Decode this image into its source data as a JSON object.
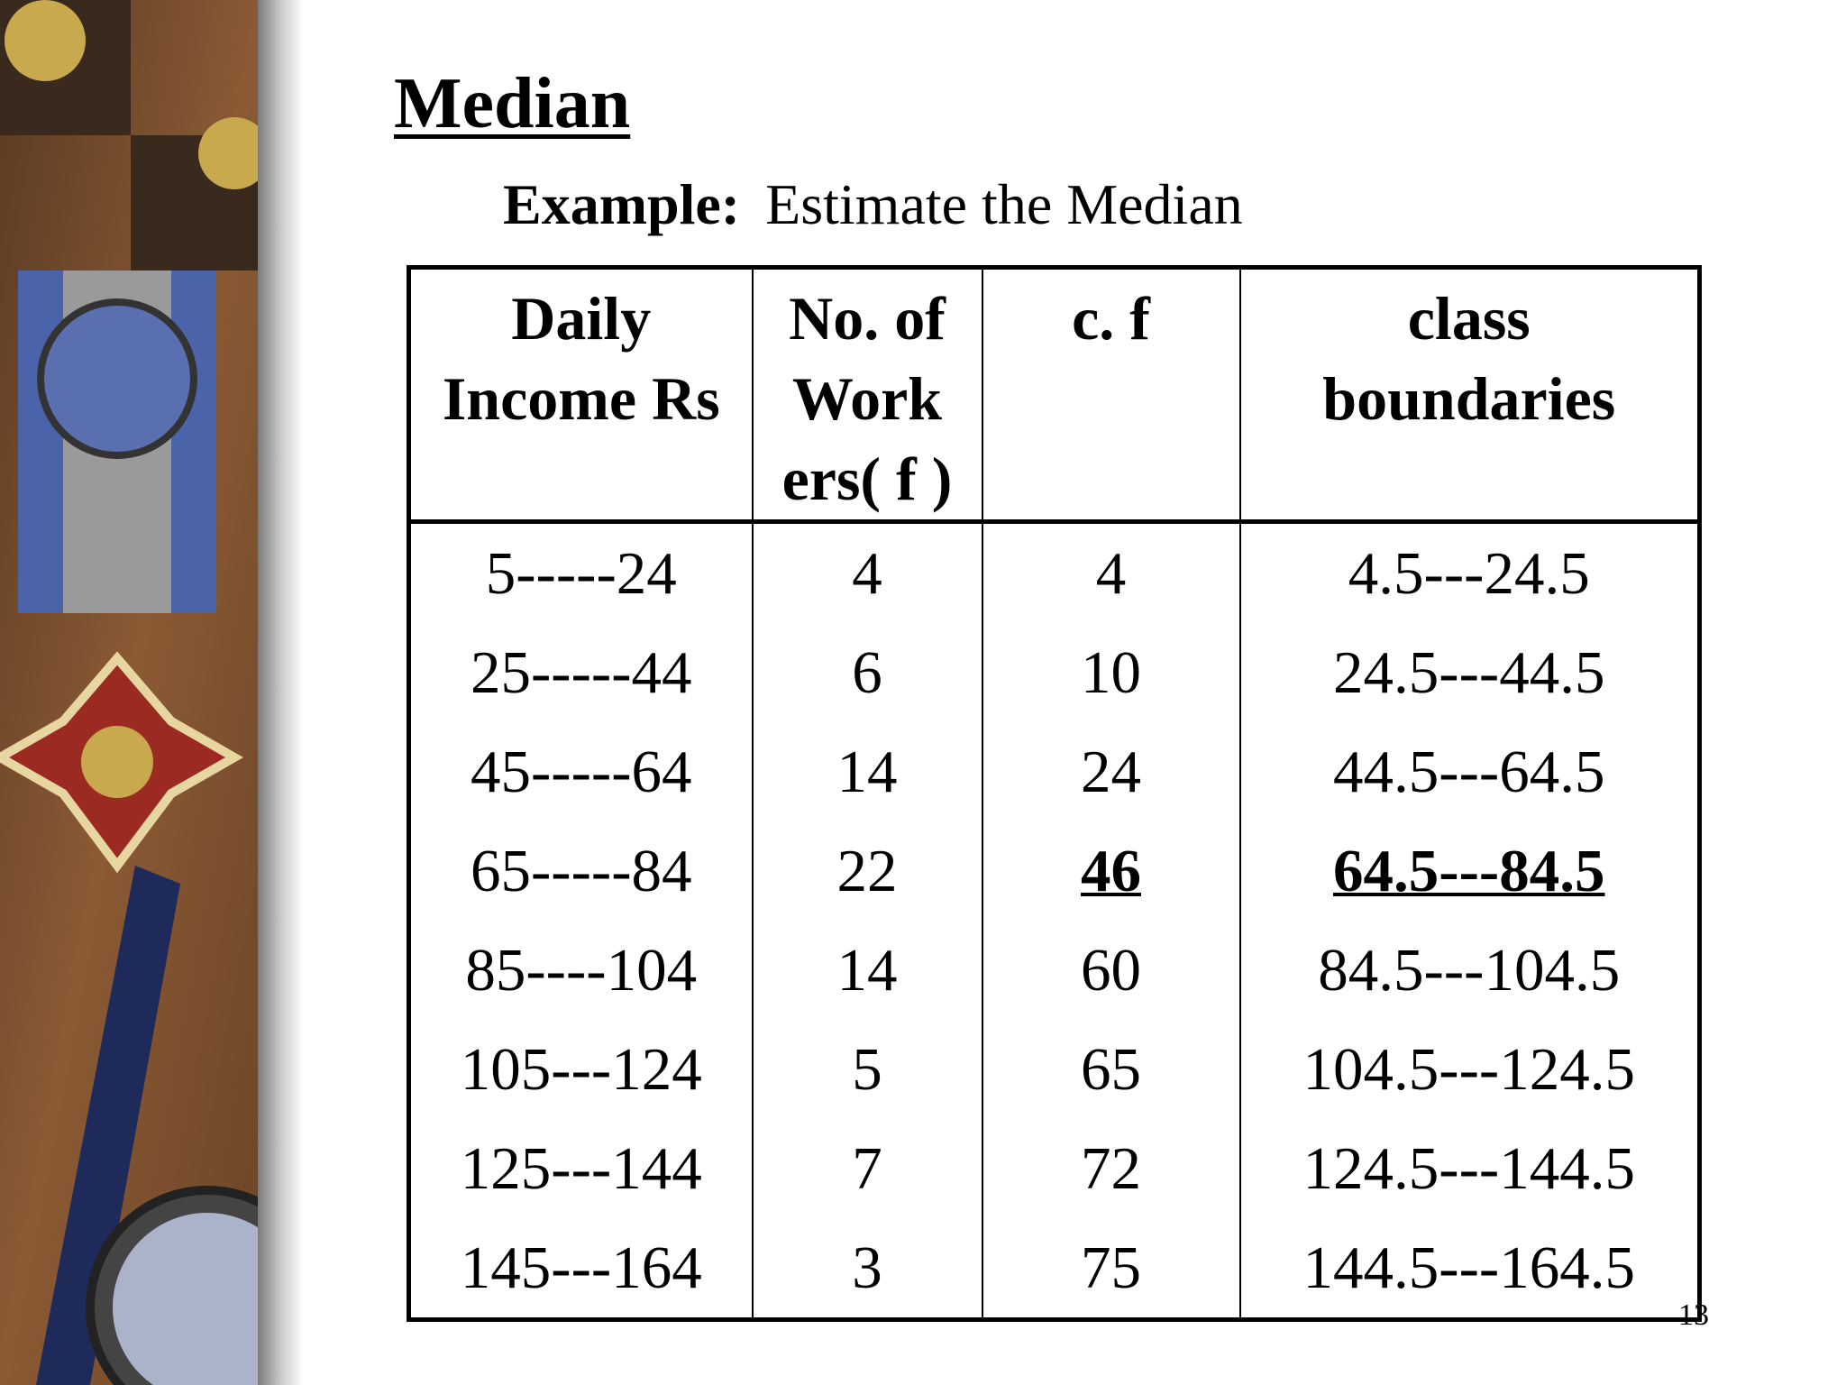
{
  "title": "Median",
  "example": {
    "label": "Example:",
    "text": "Estimate the Median"
  },
  "table": {
    "header": [
      [
        "Daily",
        "Income Rs"
      ],
      [
        "No. of",
        "Work",
        "ers( f )"
      ],
      [
        "c. f"
      ],
      [
        "class",
        "boundaries"
      ]
    ],
    "rows": [
      [
        "5-----24",
        4,
        4,
        "4.5---24.5"
      ],
      [
        "25-----44",
        6,
        10,
        "24.5---44.5"
      ],
      [
        "45-----64",
        14,
        24,
        "44.5---64.5"
      ],
      [
        "65-----84",
        22,
        46,
        "64.5---84.5"
      ],
      [
        "85----104",
        14,
        60,
        "84.5---104.5"
      ],
      [
        "105---124",
        5,
        65,
        "104.5---124.5"
      ],
      [
        "125---144",
        7,
        72,
        "124.5---144.5"
      ],
      [
        "145---164",
        3,
        75,
        "144.5---164.5"
      ]
    ]
  },
  "page_number": "13"
}
